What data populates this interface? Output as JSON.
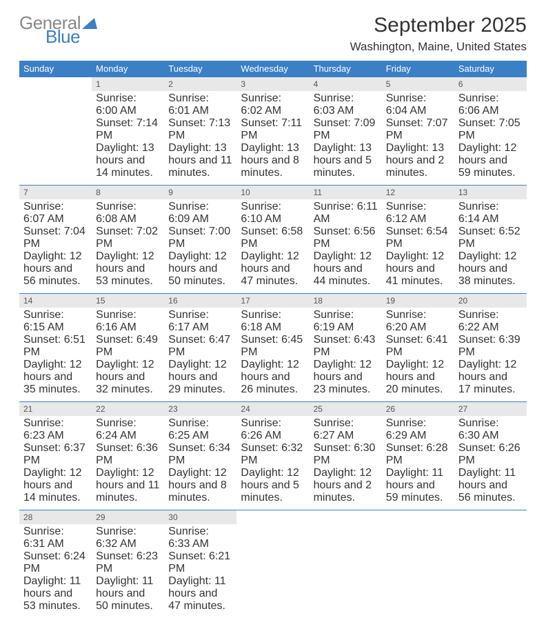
{
  "logo": {
    "word1": "General",
    "word2": "Blue"
  },
  "title": "September 2025",
  "location": "Washington, Maine, United States",
  "colors": {
    "header_bg": "#3b7fc4",
    "header_text": "#ffffff",
    "daynum_bg": "#e8e8e8",
    "border": "#3b7fc4",
    "text": "#333333",
    "logo_gray": "#888888",
    "logo_blue": "#3b7fc4",
    "background": "#ffffff"
  },
  "typography": {
    "title_fontsize": 30,
    "location_fontsize": 17,
    "header_fontsize": 13,
    "daynum_fontsize": 12,
    "cell_fontsize": 10.5,
    "logo_fontsize": 26
  },
  "day_headers": [
    "Sunday",
    "Monday",
    "Tuesday",
    "Wednesday",
    "Thursday",
    "Friday",
    "Saturday"
  ],
  "weeks": [
    [
      null,
      {
        "n": "1",
        "sunrise": "Sunrise: 6:00 AM",
        "sunset": "Sunset: 7:14 PM",
        "daylight": "Daylight: 13 hours and 14 minutes."
      },
      {
        "n": "2",
        "sunrise": "Sunrise: 6:01 AM",
        "sunset": "Sunset: 7:13 PM",
        "daylight": "Daylight: 13 hours and 11 minutes."
      },
      {
        "n": "3",
        "sunrise": "Sunrise: 6:02 AM",
        "sunset": "Sunset: 7:11 PM",
        "daylight": "Daylight: 13 hours and 8 minutes."
      },
      {
        "n": "4",
        "sunrise": "Sunrise: 6:03 AM",
        "sunset": "Sunset: 7:09 PM",
        "daylight": "Daylight: 13 hours and 5 minutes."
      },
      {
        "n": "5",
        "sunrise": "Sunrise: 6:04 AM",
        "sunset": "Sunset: 7:07 PM",
        "daylight": "Daylight: 13 hours and 2 minutes."
      },
      {
        "n": "6",
        "sunrise": "Sunrise: 6:06 AM",
        "sunset": "Sunset: 7:05 PM",
        "daylight": "Daylight: 12 hours and 59 minutes."
      }
    ],
    [
      {
        "n": "7",
        "sunrise": "Sunrise: 6:07 AM",
        "sunset": "Sunset: 7:04 PM",
        "daylight": "Daylight: 12 hours and 56 minutes."
      },
      {
        "n": "8",
        "sunrise": "Sunrise: 6:08 AM",
        "sunset": "Sunset: 7:02 PM",
        "daylight": "Daylight: 12 hours and 53 minutes."
      },
      {
        "n": "9",
        "sunrise": "Sunrise: 6:09 AM",
        "sunset": "Sunset: 7:00 PM",
        "daylight": "Daylight: 12 hours and 50 minutes."
      },
      {
        "n": "10",
        "sunrise": "Sunrise: 6:10 AM",
        "sunset": "Sunset: 6:58 PM",
        "daylight": "Daylight: 12 hours and 47 minutes."
      },
      {
        "n": "11",
        "sunrise": "Sunrise: 6:11 AM",
        "sunset": "Sunset: 6:56 PM",
        "daylight": "Daylight: 12 hours and 44 minutes."
      },
      {
        "n": "12",
        "sunrise": "Sunrise: 6:12 AM",
        "sunset": "Sunset: 6:54 PM",
        "daylight": "Daylight: 12 hours and 41 minutes."
      },
      {
        "n": "13",
        "sunrise": "Sunrise: 6:14 AM",
        "sunset": "Sunset: 6:52 PM",
        "daylight": "Daylight: 12 hours and 38 minutes."
      }
    ],
    [
      {
        "n": "14",
        "sunrise": "Sunrise: 6:15 AM",
        "sunset": "Sunset: 6:51 PM",
        "daylight": "Daylight: 12 hours and 35 minutes."
      },
      {
        "n": "15",
        "sunrise": "Sunrise: 6:16 AM",
        "sunset": "Sunset: 6:49 PM",
        "daylight": "Daylight: 12 hours and 32 minutes."
      },
      {
        "n": "16",
        "sunrise": "Sunrise: 6:17 AM",
        "sunset": "Sunset: 6:47 PM",
        "daylight": "Daylight: 12 hours and 29 minutes."
      },
      {
        "n": "17",
        "sunrise": "Sunrise: 6:18 AM",
        "sunset": "Sunset: 6:45 PM",
        "daylight": "Daylight: 12 hours and 26 minutes."
      },
      {
        "n": "18",
        "sunrise": "Sunrise: 6:19 AM",
        "sunset": "Sunset: 6:43 PM",
        "daylight": "Daylight: 12 hours and 23 minutes."
      },
      {
        "n": "19",
        "sunrise": "Sunrise: 6:20 AM",
        "sunset": "Sunset: 6:41 PM",
        "daylight": "Daylight: 12 hours and 20 minutes."
      },
      {
        "n": "20",
        "sunrise": "Sunrise: 6:22 AM",
        "sunset": "Sunset: 6:39 PM",
        "daylight": "Daylight: 12 hours and 17 minutes."
      }
    ],
    [
      {
        "n": "21",
        "sunrise": "Sunrise: 6:23 AM",
        "sunset": "Sunset: 6:37 PM",
        "daylight": "Daylight: 12 hours and 14 minutes."
      },
      {
        "n": "22",
        "sunrise": "Sunrise: 6:24 AM",
        "sunset": "Sunset: 6:36 PM",
        "daylight": "Daylight: 12 hours and 11 minutes."
      },
      {
        "n": "23",
        "sunrise": "Sunrise: 6:25 AM",
        "sunset": "Sunset: 6:34 PM",
        "daylight": "Daylight: 12 hours and 8 minutes."
      },
      {
        "n": "24",
        "sunrise": "Sunrise: 6:26 AM",
        "sunset": "Sunset: 6:32 PM",
        "daylight": "Daylight: 12 hours and 5 minutes."
      },
      {
        "n": "25",
        "sunrise": "Sunrise: 6:27 AM",
        "sunset": "Sunset: 6:30 PM",
        "daylight": "Daylight: 12 hours and 2 minutes."
      },
      {
        "n": "26",
        "sunrise": "Sunrise: 6:29 AM",
        "sunset": "Sunset: 6:28 PM",
        "daylight": "Daylight: 11 hours and 59 minutes."
      },
      {
        "n": "27",
        "sunrise": "Sunrise: 6:30 AM",
        "sunset": "Sunset: 6:26 PM",
        "daylight": "Daylight: 11 hours and 56 minutes."
      }
    ],
    [
      {
        "n": "28",
        "sunrise": "Sunrise: 6:31 AM",
        "sunset": "Sunset: 6:24 PM",
        "daylight": "Daylight: 11 hours and 53 minutes."
      },
      {
        "n": "29",
        "sunrise": "Sunrise: 6:32 AM",
        "sunset": "Sunset: 6:23 PM",
        "daylight": "Daylight: 11 hours and 50 minutes."
      },
      {
        "n": "30",
        "sunrise": "Sunrise: 6:33 AM",
        "sunset": "Sunset: 6:21 PM",
        "daylight": "Daylight: 11 hours and 47 minutes."
      },
      null,
      null,
      null,
      null
    ]
  ]
}
